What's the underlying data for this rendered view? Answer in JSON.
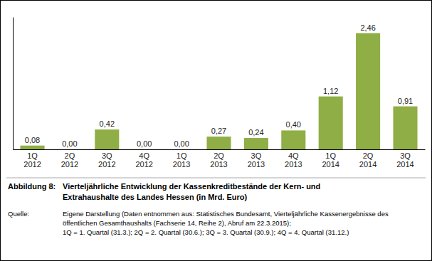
{
  "chart_data": {
    "type": "bar",
    "title": "Vierteljährliche Entwicklung der Kassenkreditbestände der Kern- und\nExtrahaushalte des Landes Hessen (in Mrd. Euro)",
    "annotations": [
      "Abbildung 8:",
      "Quelle:",
      "Eigene Darstellung (Daten entnommen aus: Statistisches Bundesamt, Vierteljährliche Kassenergebnisse des",
      "öffentlichen Gesamthaushalts (Fachserie 14, Reihe 2), Abruf am 22.3.2015);",
      "1Q = 1. Quartal (31.3.);  2Q = 2. Quartal (30.6.);  3Q = 3. Quartal (30.9.);  4Q = 4. Quartal (31.12.)"
    ],
    "categories": [
      "1Q\n2012",
      "2Q\n2012",
      "3Q\n2012",
      "4Q\n2012",
      "1Q\n2013",
      "2Q\n2013",
      "3Q\n2013",
      "4Q\n2013",
      "1Q\n2014",
      "2Q\n2014",
      "3Q\n2014"
    ],
    "values": [
      0.08,
      0.0,
      0.42,
      0.0,
      0.0,
      0.27,
      0.24,
      0.4,
      1.12,
      2.46,
      0.91
    ],
    "value_labels": [
      "0,08",
      "0,00",
      "0,42",
      "0,00",
      "0,00",
      "0,27",
      "0,24",
      "0,40",
      "1,12",
      "2,46",
      "0,91"
    ],
    "color": "#8fae45",
    "ylim": [
      0,
      2.8
    ],
    "data_labels": true,
    "tick_labels": "x",
    "grid": false
  }
}
